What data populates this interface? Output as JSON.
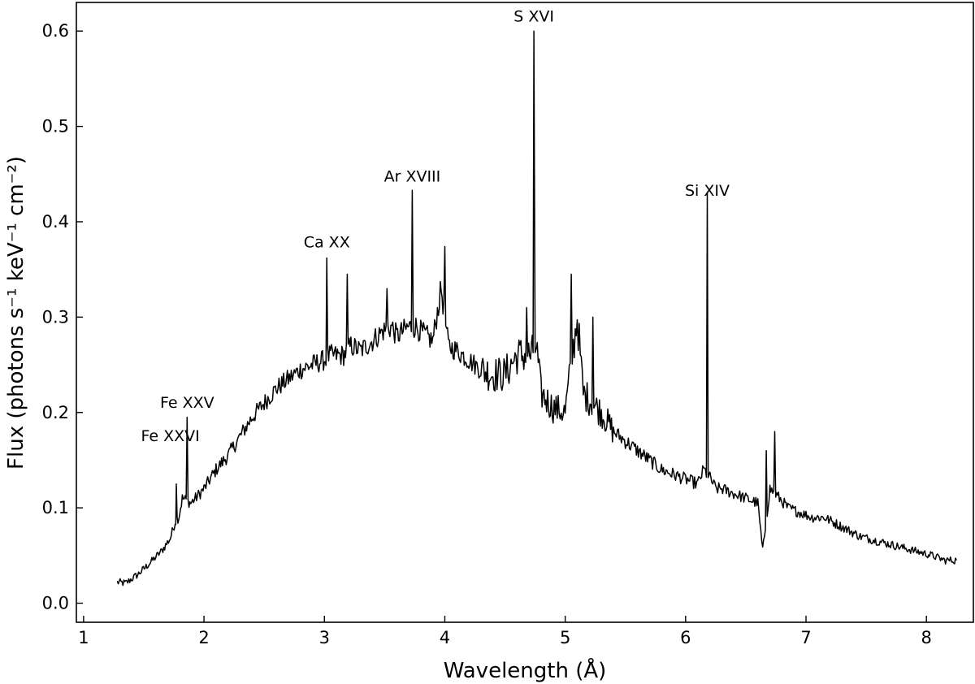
{
  "chart_data": {
    "type": "line",
    "title": "",
    "xlabel": "Wavelength (Å)",
    "ylabel": "Flux (photons s⁻¹ keV⁻¹ cm⁻²)",
    "xlim": [
      0.94,
      8.39
    ],
    "ylim": [
      -0.02,
      0.63
    ],
    "grid": false,
    "legend": "none",
    "line_color": "#000000",
    "x_ticks": [
      1,
      2,
      3,
      4,
      5,
      6,
      7,
      8
    ],
    "y_ticks": [
      0.0,
      0.1,
      0.2,
      0.3,
      0.4,
      0.5,
      0.6
    ],
    "x_tick_labels": [
      "1",
      "2",
      "3",
      "4",
      "5",
      "6",
      "7",
      "8"
    ],
    "y_tick_labels": [
      "0.0",
      "0.1",
      "0.2",
      "0.3",
      "0.4",
      "0.5",
      "0.6"
    ],
    "series": [
      {
        "x": [
          1.28,
          1.35,
          1.45,
          1.55,
          1.65,
          1.72,
          1.76,
          1.77,
          1.79,
          1.82,
          1.86,
          1.89,
          1.93,
          2.0,
          2.1,
          2.2,
          2.3,
          2.4,
          2.5,
          2.6,
          2.7,
          2.8,
          2.9,
          3.0,
          3.02,
          3.05,
          3.1,
          3.16,
          3.19,
          3.22,
          3.3,
          3.4,
          3.48,
          3.52,
          3.56,
          3.6,
          3.7,
          3.73,
          3.76,
          3.8,
          3.9,
          3.97,
          4.0,
          4.03,
          4.1,
          4.2,
          4.3,
          4.4,
          4.5,
          4.6,
          4.68,
          4.72,
          4.74,
          4.76,
          4.8,
          4.9,
          5.0,
          5.05,
          5.1,
          5.15,
          5.23,
          5.3,
          5.4,
          5.5,
          5.6,
          5.7,
          5.8,
          5.9,
          6.0,
          6.1,
          6.15,
          6.18,
          6.21,
          6.25,
          6.3,
          6.4,
          6.5,
          6.6,
          6.64,
          6.67,
          6.7,
          6.74,
          6.78,
          6.85,
          6.95,
          7.05,
          7.15,
          7.3,
          7.45,
          7.6,
          7.75,
          7.9,
          8.05,
          8.15,
          8.25
        ],
        "y": [
          0.022,
          0.021,
          0.03,
          0.042,
          0.055,
          0.068,
          0.085,
          0.125,
          0.09,
          0.11,
          0.195,
          0.105,
          0.11,
          0.12,
          0.14,
          0.155,
          0.175,
          0.195,
          0.21,
          0.225,
          0.235,
          0.245,
          0.25,
          0.255,
          0.362,
          0.26,
          0.26,
          0.26,
          0.345,
          0.27,
          0.265,
          0.275,
          0.285,
          0.33,
          0.29,
          0.28,
          0.29,
          0.433,
          0.29,
          0.285,
          0.275,
          0.33,
          0.374,
          0.27,
          0.265,
          0.255,
          0.245,
          0.24,
          0.24,
          0.26,
          0.31,
          0.26,
          0.6,
          0.27,
          0.22,
          0.205,
          0.2,
          0.345,
          0.3,
          0.22,
          0.3,
          0.2,
          0.18,
          0.17,
          0.16,
          0.15,
          0.14,
          0.135,
          0.13,
          0.125,
          0.14,
          0.43,
          0.13,
          0.12,
          0.12,
          0.115,
          0.11,
          0.105,
          0.055,
          0.16,
          0.12,
          0.18,
          0.11,
          0.1,
          0.095,
          0.09,
          0.09,
          0.08,
          0.07,
          0.065,
          0.06,
          0.055,
          0.05,
          0.045,
          0.045
        ]
      }
    ],
    "annotations": [
      {
        "text": "Fe XXVI",
        "x": 1.72,
        "y": 0.165
      },
      {
        "text": "Fe XXV",
        "x": 1.86,
        "y": 0.2
      },
      {
        "text": "Ca XX",
        "x": 3.02,
        "y": 0.368
      },
      {
        "text": "Ar XVIII",
        "x": 3.73,
        "y": 0.437
      },
      {
        "text": "S XVI",
        "x": 4.74,
        "y": 0.605
      },
      {
        "text": "Si XIV",
        "x": 6.18,
        "y": 0.422
      }
    ]
  }
}
